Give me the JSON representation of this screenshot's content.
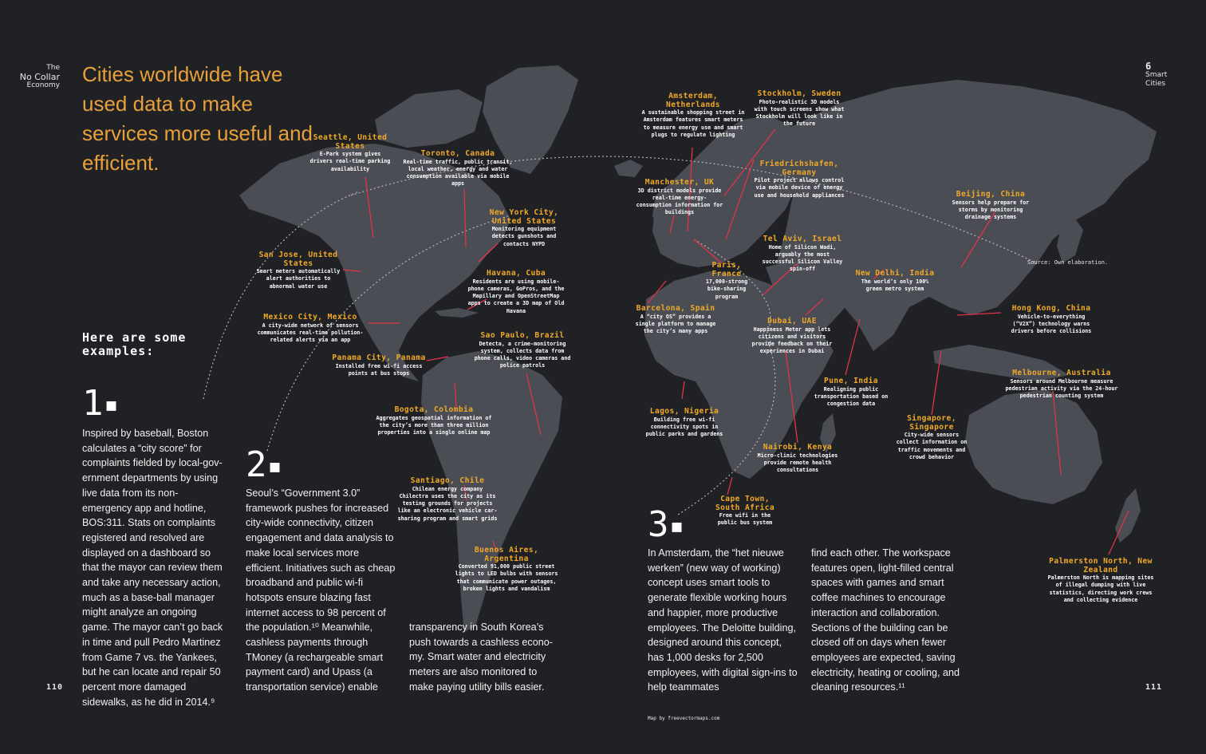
{
  "running_head_left": {
    "line1": "The",
    "line2": "No Collar",
    "line3": "Economy"
  },
  "running_head_right": {
    "glyph": "6",
    "line1": "Smart",
    "line2": "Cities"
  },
  "headline": "Cities worldwide have used data to make services more useful and efficient.",
  "examples_heading": {
    "line1": "Here are some",
    "line2": "examples:"
  },
  "example1": {
    "number": "1",
    "text": "Inspired by baseball, Boston calculates a “city score” for complaints fielded by local-gov-ernment departments by using live data from its non-emergency app and hotline, BOS:311. Stats on complaints registered and resolved are displayed on a dashboard so that the mayor can review them and take any necessary action, much as a base-ball manager might analyze an ongoing game. The mayor can’t go back in time and pull Pedro Martinez from Game 7 vs. the Yankees, but he can locate and repair 50 percent more damaged sidewalks, as he did in 2014.⁹"
  },
  "example2": {
    "number": "2",
    "text_col1": "Seoul’s “Government 3.0” framework pushes for increased city-wide connectivity, citizen engagement and data analysis to make local services more efficient. Initiatives such as cheap broadband and public wi-fi hotspots ensure blazing fast internet access to 98 percent of the population.¹⁰ Meanwhile, cashless payments through TMoney (a rechargeable smart payment card) and Upass (a transportation service) enable",
    "text_col2": "transparency in South Korea’s push towards a cashless econo-my. Smart water and electricity meters are also monitored to make paying utility bills easier."
  },
  "example3": {
    "number": "3",
    "text_col1": "In Amsterdam, the “het nieuwe werken” (new way of working) concept uses smart tools to generate flexible working hours and happier, more productive employees. The Deloitte building, designed around this concept, has 1,000 desks for 2,500 employees, with digital sign-ins to help teammates",
    "text_col2": "find each other. The workspace features open, light-filled central spaces with games and smart coffee machines to encourage interaction and collaboration. Sections of the building can be closed off on days when fewer employees are expected, saving electricity, heating or cooling, and cleaning resources.¹¹"
  },
  "source_note": "Source: Own elaboration.",
  "map_credit": "Map by freevectormaps.com",
  "page_left": "110",
  "page_right": "111",
  "colors": {
    "background": "#202124",
    "land": "#4a4d53",
    "accent": "#f0a92a",
    "leader": "#e0344a"
  },
  "cities": [
    {
      "id": "seattle",
      "city": "Seattle, United States",
      "desc": "E-Park system gives drivers real-time parking availability"
    },
    {
      "id": "toronto",
      "city": "Toronto, Canada",
      "desc": "Real-time traffic, public transit, local weather, energy and water consumption available via mobile apps"
    },
    {
      "id": "newyork",
      "city": "New York City, United States",
      "desc": "Monitoring equipment detects gunshots and contacts NYPD"
    },
    {
      "id": "sanjose",
      "city": "San Jose, United States",
      "desc": "Smart meters automatically alert authorities to abnormal water use"
    },
    {
      "id": "havana",
      "city": "Havana, Cuba",
      "desc": "Residents are using mobile-phone cameras, GoPros, and the Mapillary and OpenStreetMap apps to create a 3D map of Old Havana"
    },
    {
      "id": "mexico",
      "city": "Mexico City, Mexico",
      "desc": "A city-wide network of sensors communicates real-time pollution-related alerts via an app"
    },
    {
      "id": "saopaulo",
      "city": "Sao Paulo, Brazil",
      "desc": "Detecta, a crime-monitoring system, collects data from phone calls, video cameras and police patrols"
    },
    {
      "id": "panama",
      "city": "Panama City, Panama",
      "desc": "Installed free wi-fi access points at bus stops"
    },
    {
      "id": "bogota",
      "city": "Bogota, Colombia",
      "desc": "Aggregates geospatial information of the city’s more than three million properties into a single online map"
    },
    {
      "id": "santiago",
      "city": "Santiago, Chile",
      "desc": "Chilean energy company Chilectra uses the city as its testing grounds for projects like an electronic vehicle car-sharing program and smart grids"
    },
    {
      "id": "buenosaires",
      "city": "Buenos Aires, Argentina",
      "desc": "Converted 91,000 public street lights to LED bulbs with sensors that communicate power outages, broken lights and vandalism"
    },
    {
      "id": "amsterdam",
      "city": "Amsterdam, Netherlands",
      "desc": "A sustainable shopping street in Amsterdam features smart meters to measure energy use and smart plugs to regulate lighting"
    },
    {
      "id": "stockholm",
      "city": "Stockholm, Sweden",
      "desc": "Photo-realistic 3D models with touch screens show what Stockholm will look like in the future"
    },
    {
      "id": "manchester",
      "city": "Manchester, UK",
      "desc": "3D district models provide real-time energy-consumption information for buildings"
    },
    {
      "id": "friedrichshafen",
      "city": "Friedrichshafen, Germany",
      "desc": "Pilot project allows control via mobile device of energy use and household appliances"
    },
    {
      "id": "telaviv",
      "city": "Tel Aviv, Israel",
      "desc": "Home of Silicon Wadi, arguably the most successful Silicon Valley spin-off"
    },
    {
      "id": "paris",
      "city": "Paris, France",
      "desc": "17,000-strong bike-sharing program"
    },
    {
      "id": "barcelona",
      "city": "Barcelona, Spain",
      "desc": "A “city OS” provides a single platform to manage the city’s many apps"
    },
    {
      "id": "dubai",
      "city": "Dubai, UAE",
      "desc": "Happiness Meter app lets citizens and visitors provide feedback on their experiences in Dubai"
    },
    {
      "id": "newdelhi",
      "city": "New Delhi, India",
      "desc": "The world’s only 100% green metro system"
    },
    {
      "id": "beijing",
      "city": "Beijing, China",
      "desc": "Sensors help prepare for storms by monitoring drainage systems"
    },
    {
      "id": "hongkong",
      "city": "Hong Kong, China",
      "desc": "Vehicle-to-everything (“V2X”) technology warns drivers before collisions"
    },
    {
      "id": "melbourne",
      "city": "Melbourne, Australia",
      "desc": "Sensors around Melbourne measure pedestrian activity via the 24-hour pedestrian counting system"
    },
    {
      "id": "pune",
      "city": "Pune, India",
      "desc": "Realigning public transportation based on congestion data"
    },
    {
      "id": "singapore",
      "city": "Singapore, Singapore",
      "desc": "City-wide sensors collect information on traffic movements and crowd behavior"
    },
    {
      "id": "lagos",
      "city": "Lagos, Nigeria",
      "desc": "Building free wi-fi connectivity spots in public parks and gardens"
    },
    {
      "id": "nairobi",
      "city": "Nairobi, Kenya",
      "desc": "Micro-clinic technologies provide remote health consultations"
    },
    {
      "id": "capetown",
      "city": "Cape Town, South Africa",
      "desc": "Free wifi in the public bus system"
    },
    {
      "id": "palmerston",
      "city": "Palmerston North, New Zealand",
      "desc": "Palmerston North is mapping sites of illegal dumping with live statistics, directing work crews and collecting evidence"
    }
  ]
}
